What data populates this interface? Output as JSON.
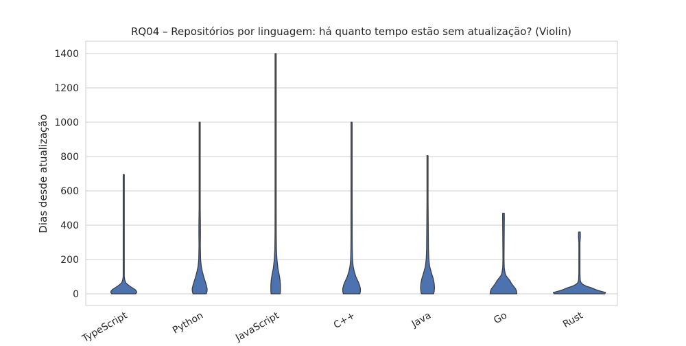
{
  "chart_data": {
    "type": "violin",
    "title": "RQ04 – Repositórios por linguagem: há quanto tempo estão sem atualização? (Violin)",
    "xlabel": "",
    "ylabel": "Dias desde atualização",
    "ylim": [
      -65,
      1480
    ],
    "yticks": [
      0,
      200,
      400,
      600,
      800,
      1000,
      1200,
      1400
    ],
    "grid": "horizontal",
    "color": "#4c72b0",
    "categories": [
      "TypeScript",
      "Python",
      "JavaScript",
      "C++",
      "Java",
      "Go",
      "Rust"
    ],
    "series": [
      {
        "category": "TypeScript",
        "min": 0,
        "max": 695,
        "profile": [
          [
            0,
            0.9
          ],
          [
            8,
            0.97
          ],
          [
            16,
            0.95
          ],
          [
            25,
            0.85
          ],
          [
            35,
            0.65
          ],
          [
            45,
            0.45
          ],
          [
            55,
            0.28
          ],
          [
            65,
            0.15
          ],
          [
            80,
            0.08
          ],
          [
            100,
            0.04
          ],
          [
            150,
            0.02
          ],
          [
            250,
            0.02
          ],
          [
            330,
            0.035
          ],
          [
            400,
            0.035
          ],
          [
            450,
            0.018
          ],
          [
            550,
            0.012
          ],
          [
            695,
            0.01
          ]
        ]
      },
      {
        "category": "Python",
        "min": 0,
        "max": 1000,
        "profile": [
          [
            0,
            0.5
          ],
          [
            15,
            0.55
          ],
          [
            30,
            0.56
          ],
          [
            50,
            0.5
          ],
          [
            70,
            0.42
          ],
          [
            100,
            0.3
          ],
          [
            130,
            0.2
          ],
          [
            160,
            0.12
          ],
          [
            200,
            0.07
          ],
          [
            280,
            0.05
          ],
          [
            360,
            0.06
          ],
          [
            420,
            0.055
          ],
          [
            500,
            0.04
          ],
          [
            600,
            0.035
          ],
          [
            700,
            0.02
          ],
          [
            850,
            0.012
          ],
          [
            1000,
            0.008
          ]
        ]
      },
      {
        "category": "JavaScript",
        "min": 0,
        "max": 1400,
        "profile": [
          [
            0,
            0.34
          ],
          [
            20,
            0.36
          ],
          [
            50,
            0.36
          ],
          [
            80,
            0.33
          ],
          [
            110,
            0.27
          ],
          [
            150,
            0.17
          ],
          [
            200,
            0.1
          ],
          [
            260,
            0.06
          ],
          [
            350,
            0.045
          ],
          [
            500,
            0.04
          ],
          [
            650,
            0.035
          ],
          [
            800,
            0.02
          ],
          [
            1000,
            0.015
          ],
          [
            1200,
            0.012
          ],
          [
            1400,
            0.008
          ]
        ]
      },
      {
        "category": "C++",
        "min": 0,
        "max": 1000,
        "profile": [
          [
            0,
            0.62
          ],
          [
            15,
            0.66
          ],
          [
            30,
            0.66
          ],
          [
            50,
            0.6
          ],
          [
            70,
            0.5
          ],
          [
            100,
            0.32
          ],
          [
            130,
            0.2
          ],
          [
            160,
            0.12
          ],
          [
            200,
            0.07
          ],
          [
            260,
            0.05
          ],
          [
            350,
            0.04
          ],
          [
            420,
            0.045
          ],
          [
            500,
            0.03
          ],
          [
            700,
            0.015
          ],
          [
            1000,
            0.008
          ]
        ]
      },
      {
        "category": "Java",
        "min": 0,
        "max": 805,
        "profile": [
          [
            0,
            0.46
          ],
          [
            15,
            0.5
          ],
          [
            35,
            0.52
          ],
          [
            60,
            0.5
          ],
          [
            90,
            0.42
          ],
          [
            120,
            0.3
          ],
          [
            160,
            0.16
          ],
          [
            200,
            0.1
          ],
          [
            260,
            0.07
          ],
          [
            350,
            0.06
          ],
          [
            450,
            0.05
          ],
          [
            550,
            0.035
          ],
          [
            650,
            0.02
          ],
          [
            805,
            0.01
          ]
        ]
      },
      {
        "category": "Go",
        "min": 0,
        "max": 470,
        "profile": [
          [
            0,
            1.0
          ],
          [
            15,
            0.98
          ],
          [
            30,
            0.9
          ],
          [
            45,
            0.75
          ],
          [
            60,
            0.6
          ],
          [
            75,
            0.5
          ],
          [
            90,
            0.35
          ],
          [
            105,
            0.2
          ],
          [
            120,
            0.12
          ],
          [
            150,
            0.06
          ],
          [
            200,
            0.04
          ],
          [
            300,
            0.05
          ],
          [
            400,
            0.06
          ],
          [
            440,
            0.065
          ],
          [
            470,
            0.06
          ]
        ]
      },
      {
        "category": "Rust",
        "min": 0,
        "max": 360,
        "profile": [
          [
            0,
            1.9
          ],
          [
            8,
            1.95
          ],
          [
            15,
            1.6
          ],
          [
            25,
            1.2
          ],
          [
            35,
            0.9
          ],
          [
            45,
            0.5
          ],
          [
            55,
            0.25
          ],
          [
            65,
            0.12
          ],
          [
            80,
            0.06
          ],
          [
            120,
            0.035
          ],
          [
            200,
            0.03
          ],
          [
            300,
            0.04
          ],
          [
            330,
            0.07
          ],
          [
            360,
            0.065
          ]
        ]
      }
    ]
  }
}
